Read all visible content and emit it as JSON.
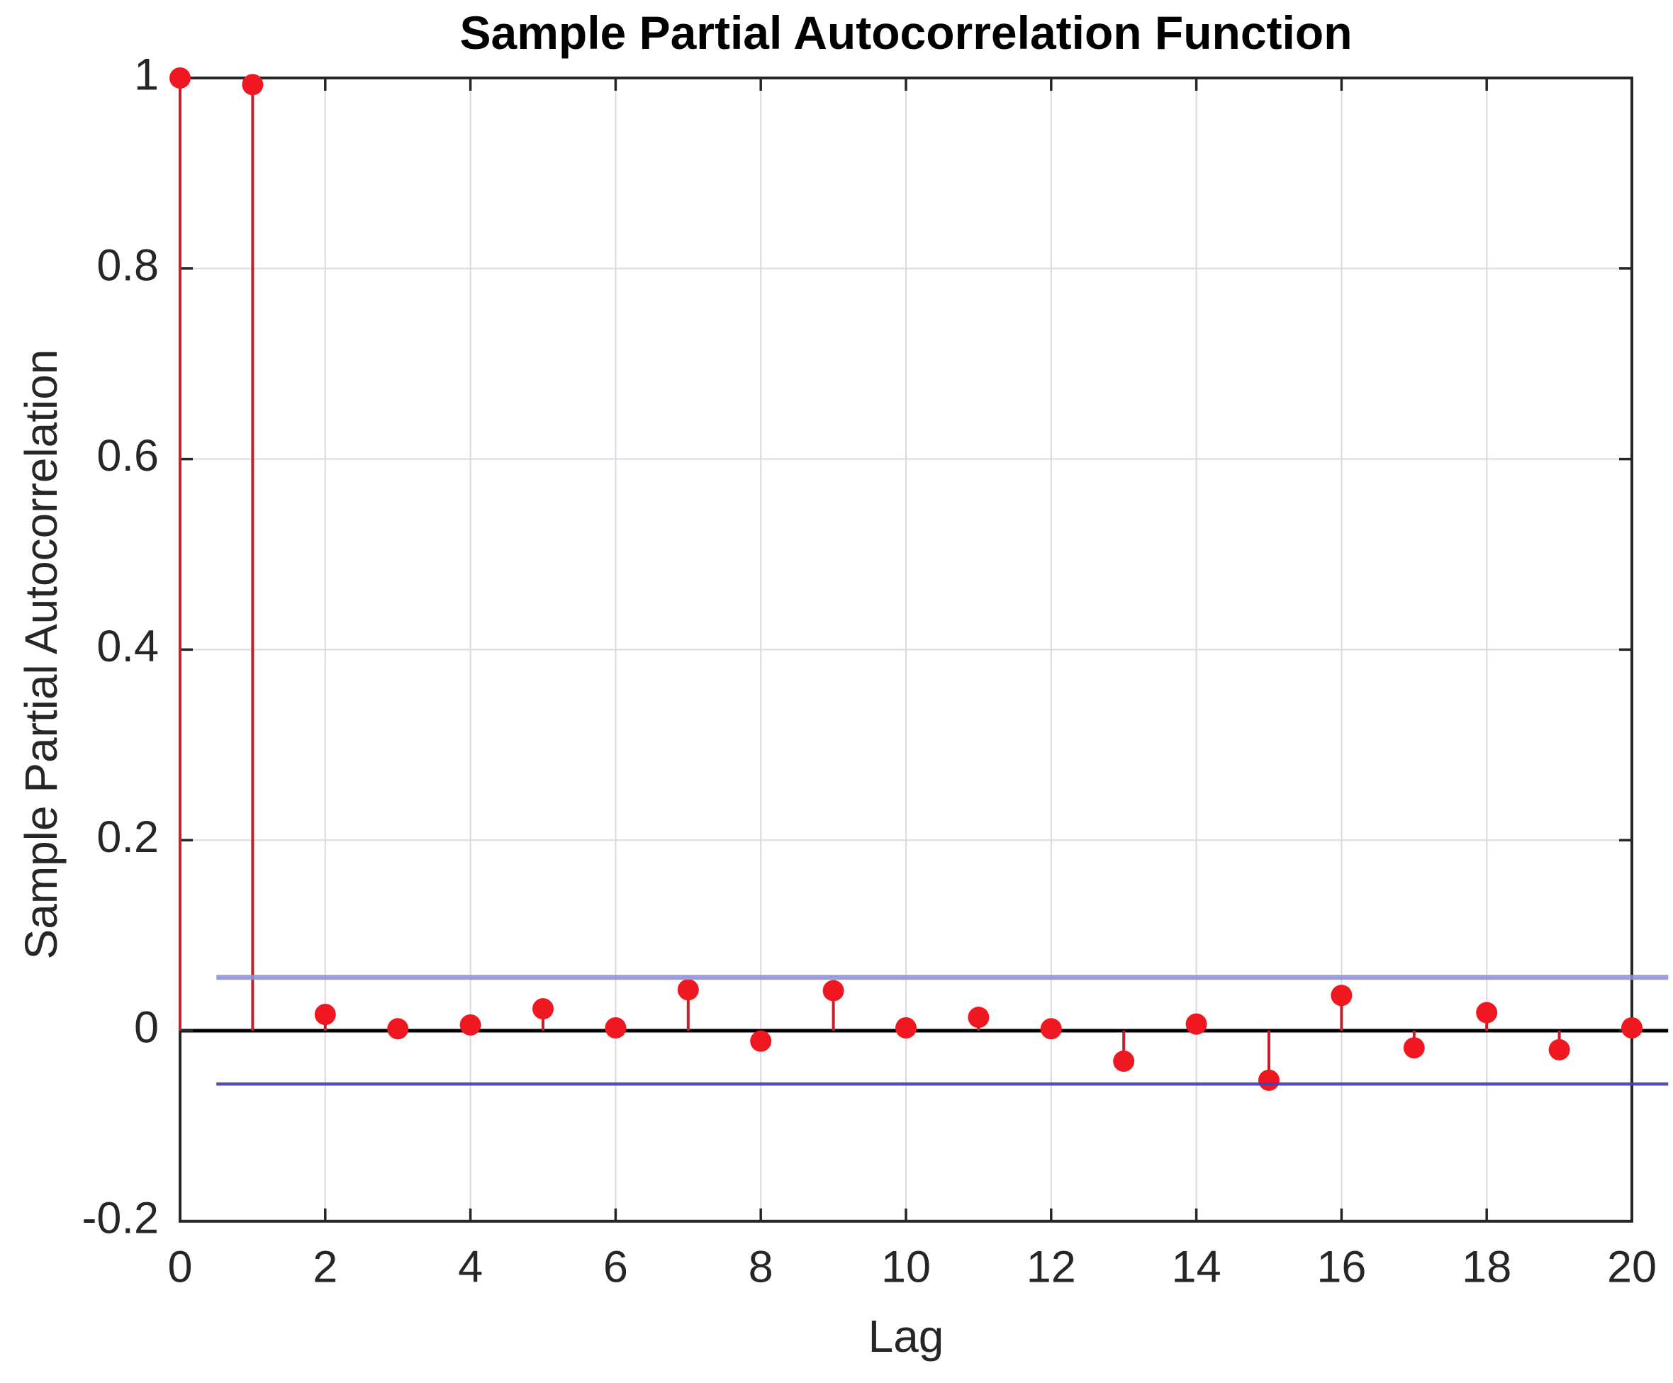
{
  "figure": {
    "title": "Sample Partial Autocorrelation Function",
    "xlabel": "Lag",
    "ylabel": "Sample Partial Autocorrelation"
  },
  "chart_data": {
    "type": "stem",
    "title": "Sample Partial Autocorrelation Function",
    "xlabel": "Lag",
    "ylabel": "Sample Partial Autocorrelation",
    "x": [
      0,
      1,
      2,
      3,
      4,
      5,
      6,
      7,
      8,
      9,
      10,
      11,
      12,
      13,
      14,
      15,
      16,
      17,
      18,
      19,
      20
    ],
    "values": [
      1.0,
      0.993,
      0.017,
      0.002,
      0.006,
      0.023,
      0.003,
      0.043,
      -0.011,
      0.042,
      0.003,
      0.014,
      0.002,
      -0.032,
      0.007,
      -0.052,
      0.037,
      -0.018,
      0.019,
      -0.02,
      0.003
    ],
    "confidence_bounds": {
      "upper": 0.056,
      "lower": -0.056,
      "x_start": 0.5,
      "x_end": 20.5
    },
    "zero_line": {
      "y": 0,
      "x_start": 0,
      "x_end": 20.5
    },
    "xlim": [
      0,
      20
    ],
    "ylim": [
      -0.2,
      1.0
    ],
    "x_ticks": [
      0,
      2,
      4,
      6,
      8,
      10,
      12,
      14,
      16,
      18,
      20
    ],
    "x_tick_labels": [
      "0",
      "2",
      "4",
      "6",
      "8",
      "10",
      "12",
      "14",
      "16",
      "18",
      "20"
    ],
    "y_ticks": [
      -0.2,
      0,
      0.2,
      0.4,
      0.6,
      0.8,
      1
    ],
    "y_tick_labels": [
      "-0.2",
      "0",
      "0.2",
      "0.4",
      "0.6",
      "0.8",
      "1"
    ],
    "grid": true,
    "grid_x_at": [
      2,
      4,
      6,
      8,
      10,
      12,
      14,
      16,
      18
    ],
    "grid_y_at": [
      0.2,
      0.4,
      0.6,
      0.8
    ],
    "legend": "none",
    "colors": {
      "marker": "#f01820",
      "stem": "#c2202a",
      "upper_bound": "#8f8fd9",
      "lower_bound": "#4040bb",
      "zero_line": "#000000",
      "axis": "#262626",
      "grid": "#d9d9e3",
      "tick_text": "#262626",
      "title_text": "#000000",
      "background": "#ffffff"
    }
  }
}
